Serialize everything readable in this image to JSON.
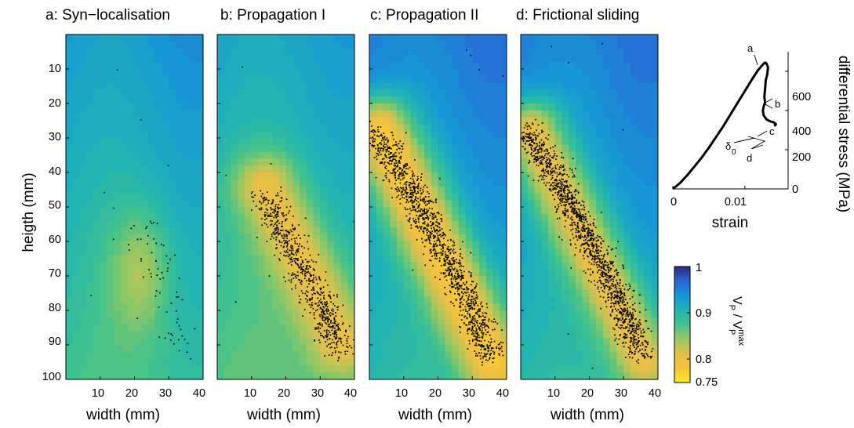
{
  "figure": {
    "panels": [
      {
        "title": "a: Syn−localisation"
      },
      {
        "title": "b: Propagation I"
      },
      {
        "title": "c: Propagation II"
      },
      {
        "title": "d: Frictional sliding"
      }
    ],
    "ylabel": "heigth (mm)",
    "xlabel": "width (mm)",
    "yticks": [
      "10",
      "20",
      "30",
      "40",
      "50",
      "60",
      "70",
      "80",
      "90",
      "100"
    ],
    "xticks": [
      "10",
      "20",
      "30",
      "40"
    ],
    "inset": {
      "ylabel": "differential stress (MPa)",
      "xlabel": "strain",
      "yticks": [
        "0",
        "200",
        "400",
        "600"
      ],
      "xticks": [
        "0",
        "0.01"
      ],
      "annotations": [
        "a",
        "b",
        "c",
        "d",
        "δ",
        "0"
      ]
    },
    "colorbar": {
      "ticks": [
        "1",
        "0.9",
        "0.8",
        "0.75"
      ],
      "label_main": "V",
      "label_sub": "P",
      "label_sep": " / V",
      "label_sub2": "P",
      "label_sup": "max",
      "colors": [
        "#2e2a7c",
        "#2b64d6",
        "#1697d6",
        "#1fb3b5",
        "#44c28a",
        "#9ac863",
        "#e2c04a",
        "#f7c33a",
        "#f9ec22"
      ]
    }
  },
  "chart_data": [
    {
      "type": "heatmap",
      "title": "a: Syn−localisation",
      "xlabel": "width (mm)",
      "ylabel": "heigth (mm)",
      "xlim": [
        0,
        40
      ],
      "ylim": [
        100,
        0
      ],
      "color_range": [
        0.75,
        1.0
      ],
      "field": {
        "background": 0.88,
        "low_zone": {
          "center": [
            21,
            70
          ],
          "spread": [
            9,
            19
          ],
          "min": 0.835
        }
      },
      "events": {
        "centre_line": [
          [
            20,
            52
          ],
          [
            28,
            72
          ],
          [
            35,
            92
          ]
        ],
        "count": 70,
        "scatter": 3.0
      }
    },
    {
      "type": "heatmap",
      "title": "b: Propagation I",
      "xlabel": "width (mm)",
      "ylabel": "heigth (mm)",
      "xlim": [
        0,
        40
      ],
      "ylim": [
        100,
        0
      ],
      "color_range": [
        0.75,
        1.0
      ],
      "field": {
        "background": 0.87,
        "band": {
          "from": [
            14,
            44
          ],
          "to": [
            36,
            90
          ],
          "width": 12,
          "min": 0.8
        }
      },
      "events": {
        "centre_line": [
          [
            14,
            47
          ],
          [
            21,
            62
          ],
          [
            30,
            78
          ],
          [
            36,
            92
          ]
        ],
        "count": 700,
        "scatter": 2.4
      }
    },
    {
      "type": "heatmap",
      "title": "c: Propagation II",
      "xlabel": "width (mm)",
      "ylabel": "heigth (mm)",
      "xlim": [
        0,
        40
      ],
      "ylim": [
        100,
        0
      ],
      "color_range": [
        0.75,
        1.0
      ],
      "field": {
        "background": 0.9,
        "band": {
          "from": [
            3,
            28
          ],
          "to": [
            36,
            95
          ],
          "width": 12,
          "min": 0.775
        }
      },
      "events": {
        "centre_line": [
          [
            2,
            28
          ],
          [
            12,
            45
          ],
          [
            20,
            60
          ],
          [
            28,
            76
          ],
          [
            35,
            93
          ]
        ],
        "count": 1300,
        "scatter": 2.2
      }
    },
    {
      "type": "heatmap",
      "title": "d: Frictional sliding",
      "xlabel": "width (mm)",
      "ylabel": "heigth (mm)",
      "xlim": [
        0,
        40
      ],
      "ylim": [
        100,
        0
      ],
      "color_range": [
        0.75,
        1.0
      ],
      "field": {
        "background": 0.9,
        "band": {
          "from": [
            3,
            28
          ],
          "to": [
            36,
            95
          ],
          "width": 11,
          "min": 0.8
        }
      },
      "events": {
        "centre_line": [
          [
            2,
            28
          ],
          [
            12,
            45
          ],
          [
            20,
            60
          ],
          [
            28,
            76
          ],
          [
            35,
            93
          ]
        ],
        "count": 1400,
        "scatter": 2.2
      }
    },
    {
      "type": "line",
      "title": "",
      "xlabel": "strain",
      "ylabel": "differential stress (MPa)",
      "xlim": [
        0,
        0.016
      ],
      "ylim": [
        0,
        700
      ],
      "series": [
        {
          "x": [
            0,
            0.001,
            0.002,
            0.003,
            0.004,
            0.005,
            0.006,
            0.007,
            0.008,
            0.009,
            0.01,
            0.011,
            0.0118,
            0.0125,
            0.0128,
            0.013,
            0.0132,
            0.0131,
            0.0129,
            0.0128,
            0.0127,
            0.0128,
            0.0126,
            0.0125,
            0.0126,
            0.013,
            0.0135,
            0.014,
            0.0143,
            0.0141
          ],
          "y": [
            0,
            30,
            70,
            115,
            160,
            210,
            265,
            320,
            380,
            440,
            500,
            560,
            605,
            635,
            645,
            640,
            620,
            585,
            555,
            510,
            470,
            440,
            420,
            400,
            375,
            355,
            345,
            340,
            330,
            320
          ]
        }
      ],
      "annotations": [
        {
          "text": "a",
          "x": 0.0128,
          "y": 645
        },
        {
          "text": "b",
          "x": 0.0132,
          "y": 590
        },
        {
          "text": "c",
          "x": 0.0128,
          "y": 450
        },
        {
          "text": "δ0",
          "x": 0.0125,
          "y": 385
        },
        {
          "text": "d",
          "x": 0.0135,
          "y": 340
        }
      ]
    }
  ]
}
